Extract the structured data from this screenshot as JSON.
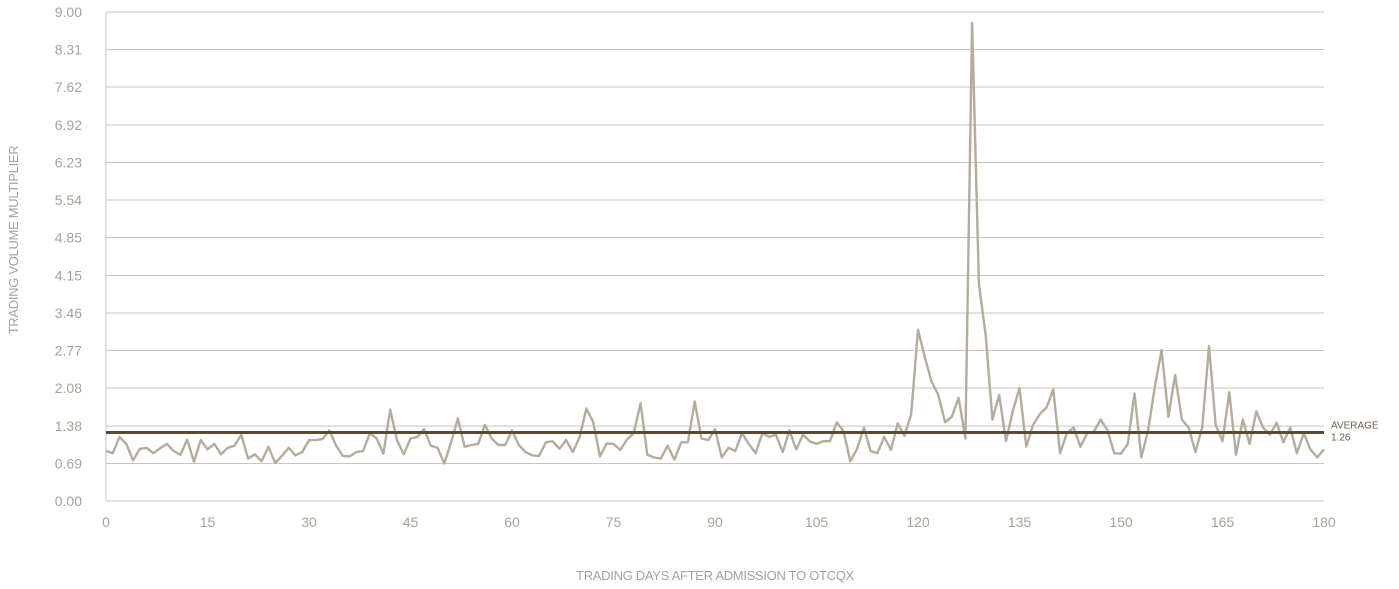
{
  "chart_data": {
    "type": "line",
    "xlabel": "TRADING DAYS AFTER ADMISSION TO OTCQX",
    "ylabel": "TRADING VOLUME MULTIPLIER",
    "xlim": [
      0,
      180
    ],
    "ylim": [
      0,
      9.0
    ],
    "x_ticks": [
      0,
      15,
      30,
      45,
      60,
      75,
      90,
      105,
      120,
      135,
      150,
      165,
      180
    ],
    "y_ticks": [
      "0.00",
      "0.69",
      "1.38",
      "2.08",
      "2.77",
      "3.46",
      "4.15",
      "4.85",
      "5.54",
      "6.23",
      "6.92",
      "7.62",
      "8.31",
      "9.00"
    ],
    "y_tick_values": [
      0,
      0.69,
      1.38,
      2.08,
      2.77,
      3.46,
      4.15,
      4.85,
      5.54,
      6.23,
      6.92,
      7.62,
      8.31,
      9.0
    ],
    "grid": true,
    "average": {
      "label": "AVERAGE",
      "value_label": "1.26",
      "value": 1.26
    },
    "series": [
      {
        "values": [
          0.92,
          0.88,
          1.18,
          1.05,
          0.75,
          0.96,
          0.98,
          0.88,
          0.97,
          1.05,
          0.92,
          0.85,
          1.13,
          0.72,
          1.12,
          0.95,
          1.05,
          0.86,
          0.98,
          1.02,
          1.22,
          0.78,
          0.86,
          0.73,
          1.0,
          0.7,
          0.83,
          0.98,
          0.84,
          0.9,
          1.12,
          1.12,
          1.14,
          1.3,
          1.02,
          0.83,
          0.82,
          0.9,
          0.92,
          1.25,
          1.15,
          0.87,
          1.68,
          1.12,
          0.86,
          1.15,
          1.18,
          1.32,
          1.02,
          0.98,
          0.69,
          1.08,
          1.52,
          1.0,
          1.03,
          1.05,
          1.4,
          1.15,
          1.03,
          1.03,
          1.3,
          1.03,
          0.9,
          0.84,
          0.83,
          1.08,
          1.1,
          0.96,
          1.12,
          0.9,
          1.18,
          1.7,
          1.45,
          0.82,
          1.06,
          1.05,
          0.94,
          1.13,
          1.25,
          1.8,
          0.85,
          0.8,
          0.78,
          1.02,
          0.76,
          1.08,
          1.08,
          1.83,
          1.15,
          1.12,
          1.32,
          0.8,
          0.98,
          0.92,
          1.25,
          1.05,
          0.88,
          1.25,
          1.18,
          1.22,
          0.9,
          1.3,
          0.95,
          1.22,
          1.1,
          1.05,
          1.1,
          1.1,
          1.45,
          1.28,
          0.73,
          0.96,
          1.35,
          0.92,
          0.88,
          1.18,
          0.94,
          1.43,
          1.2,
          1.6,
          3.15,
          2.65,
          2.2,
          1.95,
          1.45,
          1.55,
          1.9,
          1.15,
          8.8,
          4.0,
          3.05,
          1.5,
          1.95,
          1.1,
          1.65,
          2.08,
          1.0,
          1.4,
          1.6,
          1.72,
          2.05,
          0.88,
          1.25,
          1.35,
          1.0,
          1.25,
          1.28,
          1.5,
          1.3,
          0.88,
          0.87,
          1.05,
          1.98,
          0.8,
          1.3,
          2.1,
          2.78,
          1.55,
          2.32,
          1.5,
          1.35,
          0.9,
          1.35,
          2.85,
          1.4,
          1.1,
          2.0,
          0.85,
          1.5,
          1.05,
          1.65,
          1.35,
          1.22,
          1.44,
          1.08,
          1.35,
          0.88,
          1.25,
          0.95,
          0.8,
          0.95
        ]
      }
    ],
    "colors": {
      "series": "#b3ac9f",
      "average": "#5a4a30",
      "grid": "#c9c5bd",
      "text": "#a8a399"
    }
  }
}
